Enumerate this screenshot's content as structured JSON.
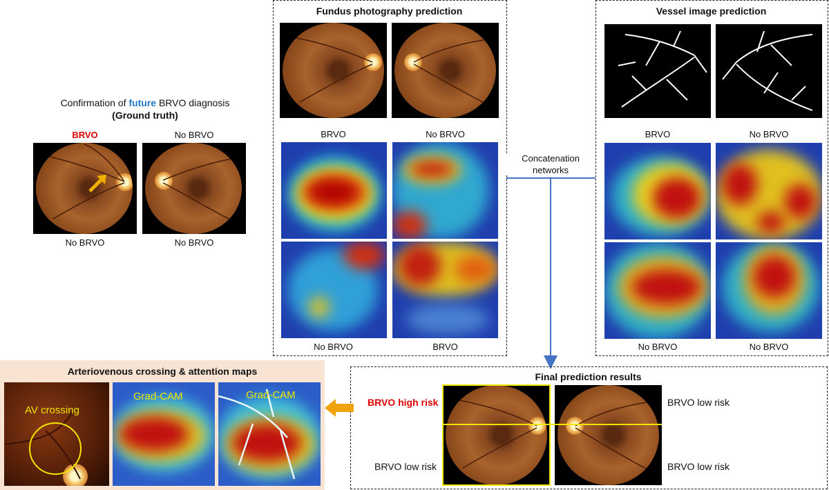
{
  "ground_truth": {
    "title_prefix": "Confirmation of ",
    "title_highlight": "future",
    "title_suffix": " BRVO diagnosis",
    "subtitle": "(Ground truth)",
    "top_labels": [
      "BRVO",
      "No BRVO"
    ],
    "bottom_labels": [
      "No BRVO",
      "No BRVO"
    ],
    "highlight_color": "#1f77c4",
    "brvo_color": "#e00000",
    "arrow_icon": "yellow-arrow-icon"
  },
  "fundus_panel": {
    "title": "Fundus photography prediction",
    "top_labels": [
      "BRVO",
      "No BRVO"
    ],
    "bottom_labels": [
      "No BRVO",
      "BRVO"
    ]
  },
  "vessel_panel": {
    "title": "Vessel image prediction",
    "top_labels": [
      "BRVO",
      "No BRVO"
    ],
    "bottom_labels": [
      "No BRVO",
      "No BRVO"
    ]
  },
  "concat": {
    "line1": "Concatenation",
    "line2": "networks",
    "line_color": "#4472c4"
  },
  "final": {
    "title": "Final prediction results",
    "high_risk": "BRVO high risk",
    "low_risk_tr": "BRVO low risk",
    "low_risk_bl": "BRVO low risk",
    "low_risk_br": "BRVO low risk",
    "frame_color": "#f2e600",
    "high_risk_color": "#e00000"
  },
  "av_panel": {
    "title": "Arteriovenous crossing & attention maps",
    "av_label": "AV crossing",
    "gradcam_1": "Grad-CAM",
    "gradcam_2": "Grad-CAM",
    "background": "#f9e4d4",
    "label_color": "#f2e600",
    "arrow_color": "#f0a30a"
  }
}
